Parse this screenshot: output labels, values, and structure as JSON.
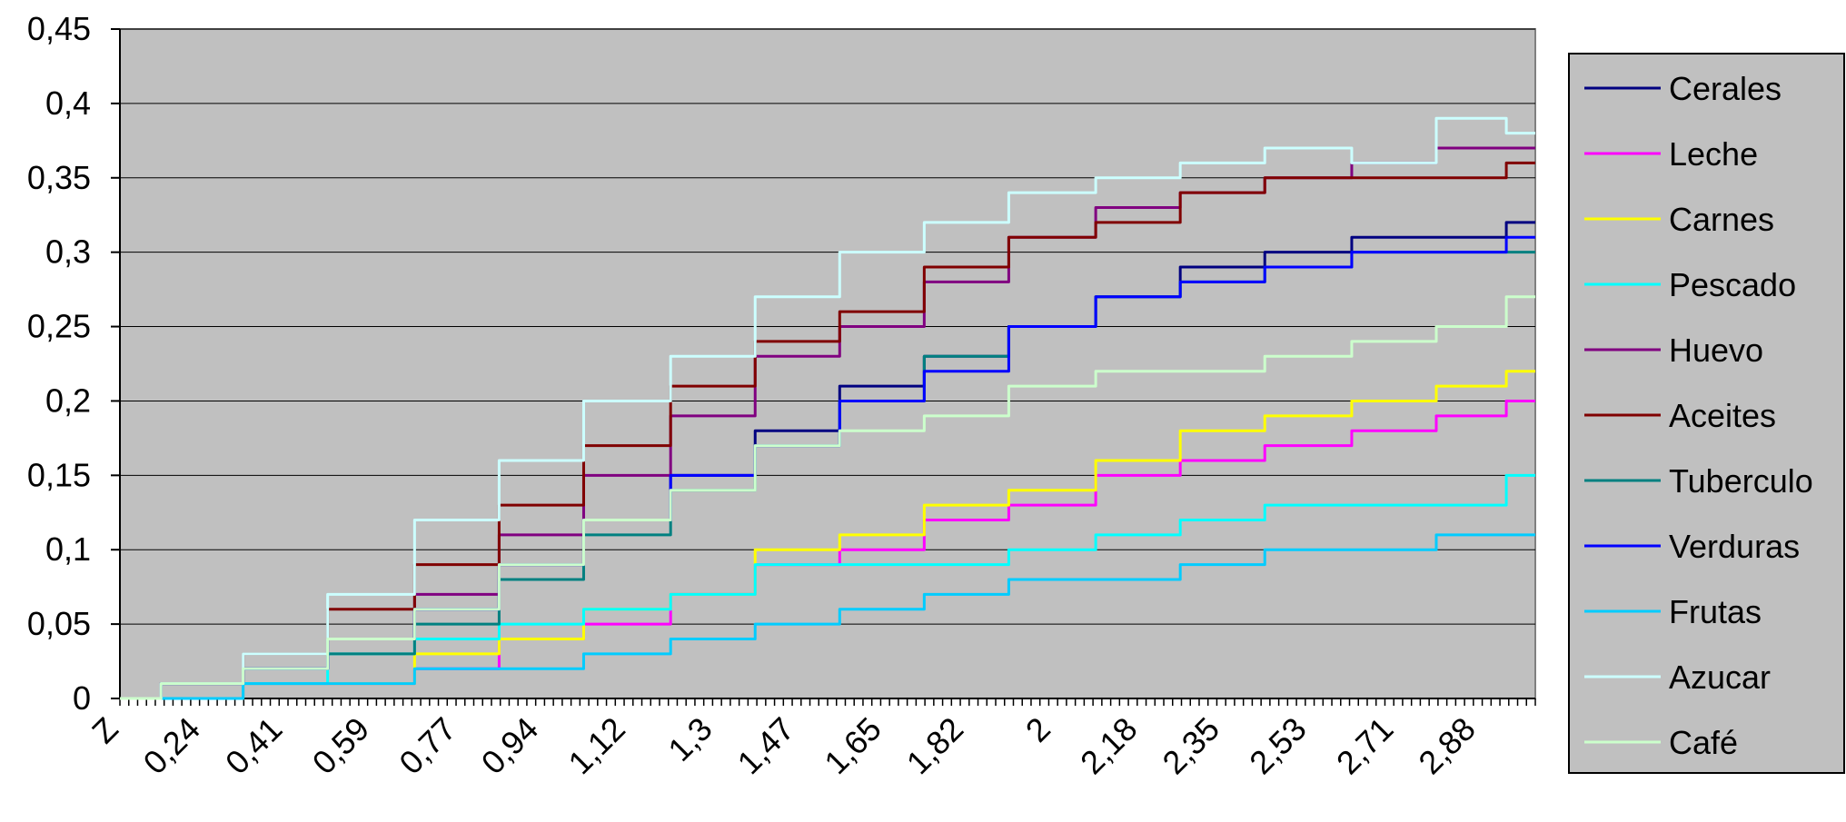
{
  "chart_data": {
    "type": "line",
    "title": "",
    "xlabel": "",
    "ylabel": "",
    "ylim": [
      0,
      0.45
    ],
    "grid": true,
    "legend_position": "right",
    "plot_background": "#c0c0c0",
    "y_ticks": [
      "0",
      "0,05",
      "0,1",
      "0,15",
      "0,2",
      "0,25",
      "0,3",
      "0,35",
      "0,4",
      "0,45"
    ],
    "x_tick_labels": [
      "Z",
      "0,24",
      "0,41",
      "0,59",
      "0,77",
      "0,94",
      "1,12",
      "1,3",
      "1,47",
      "1,65",
      "1,82",
      "2",
      "2,18",
      "2,35",
      "2,53",
      "2,71",
      "2,88"
    ],
    "x": [
      0.07,
      0.24,
      0.41,
      0.59,
      0.77,
      0.94,
      1.12,
      1.3,
      1.47,
      1.65,
      1.82,
      2.0,
      2.18,
      2.35,
      2.53,
      2.71,
      2.88,
      3.0
    ],
    "series": [
      {
        "name": "Cerales",
        "color": "#000080",
        "values": [
          0,
          0.01,
          0.02,
          0.04,
          0.06,
          0.09,
          0.12,
          0.15,
          0.18,
          0.21,
          0.23,
          0.25,
          0.27,
          0.29,
          0.3,
          0.31,
          0.31,
          0.32
        ]
      },
      {
        "name": "Leche",
        "color": "#ff00ff",
        "values": [
          0,
          0.0,
          0.01,
          0.01,
          0.02,
          0.04,
          0.05,
          0.07,
          0.09,
          0.1,
          0.12,
          0.13,
          0.15,
          0.16,
          0.17,
          0.18,
          0.19,
          0.2
        ]
      },
      {
        "name": "Carnes",
        "color": "#ffff00",
        "values": [
          0,
          0.0,
          0.01,
          0.01,
          0.03,
          0.04,
          0.06,
          0.07,
          0.1,
          0.11,
          0.13,
          0.14,
          0.16,
          0.18,
          0.19,
          0.2,
          0.21,
          0.22
        ]
      },
      {
        "name": "Pescado",
        "color": "#00ffff",
        "values": [
          0,
          0.0,
          0.01,
          0.03,
          0.04,
          0.05,
          0.06,
          0.07,
          0.09,
          0.09,
          0.09,
          0.1,
          0.11,
          0.12,
          0.13,
          0.13,
          0.13,
          0.15
        ]
      },
      {
        "name": "Huevo",
        "color": "#800080",
        "values": [
          0,
          0.01,
          0.02,
          0.04,
          0.07,
          0.11,
          0.15,
          0.19,
          0.23,
          0.25,
          0.28,
          0.31,
          0.33,
          0.34,
          0.35,
          0.36,
          0.37,
          0.37
        ]
      },
      {
        "name": "Aceites",
        "color": "#800000",
        "values": [
          0,
          0.01,
          0.03,
          0.06,
          0.09,
          0.13,
          0.17,
          0.21,
          0.24,
          0.26,
          0.29,
          0.31,
          0.32,
          0.34,
          0.35,
          0.35,
          0.35,
          0.36
        ]
      },
      {
        "name": "Tuberculo",
        "color": "#008080",
        "values": [
          0,
          0.01,
          0.02,
          0.03,
          0.05,
          0.08,
          0.11,
          0.14,
          0.17,
          0.2,
          0.23,
          0.25,
          0.27,
          0.28,
          0.29,
          0.3,
          0.3,
          0.3
        ]
      },
      {
        "name": "Verduras",
        "color": "#0000ff",
        "values": [
          0,
          0.01,
          0.02,
          0.04,
          0.06,
          0.09,
          0.12,
          0.15,
          0.17,
          0.2,
          0.22,
          0.25,
          0.27,
          0.28,
          0.29,
          0.3,
          0.3,
          0.31
        ]
      },
      {
        "name": "Frutas",
        "color": "#00ccff",
        "values": [
          0,
          0.0,
          0.01,
          0.01,
          0.02,
          0.02,
          0.03,
          0.04,
          0.05,
          0.06,
          0.07,
          0.08,
          0.08,
          0.09,
          0.1,
          0.1,
          0.11,
          0.11
        ]
      },
      {
        "name": "Azucar",
        "color": "#ccffff",
        "values": [
          0,
          0.01,
          0.03,
          0.07,
          0.12,
          0.16,
          0.2,
          0.23,
          0.27,
          0.3,
          0.32,
          0.34,
          0.35,
          0.36,
          0.37,
          0.36,
          0.39,
          0.38
        ]
      },
      {
        "name": "Café",
        "color": "#ccffcc",
        "values": [
          0,
          0.01,
          0.02,
          0.04,
          0.06,
          0.09,
          0.12,
          0.14,
          0.17,
          0.18,
          0.19,
          0.21,
          0.22,
          0.22,
          0.23,
          0.24,
          0.25,
          0.27
        ]
      }
    ]
  }
}
